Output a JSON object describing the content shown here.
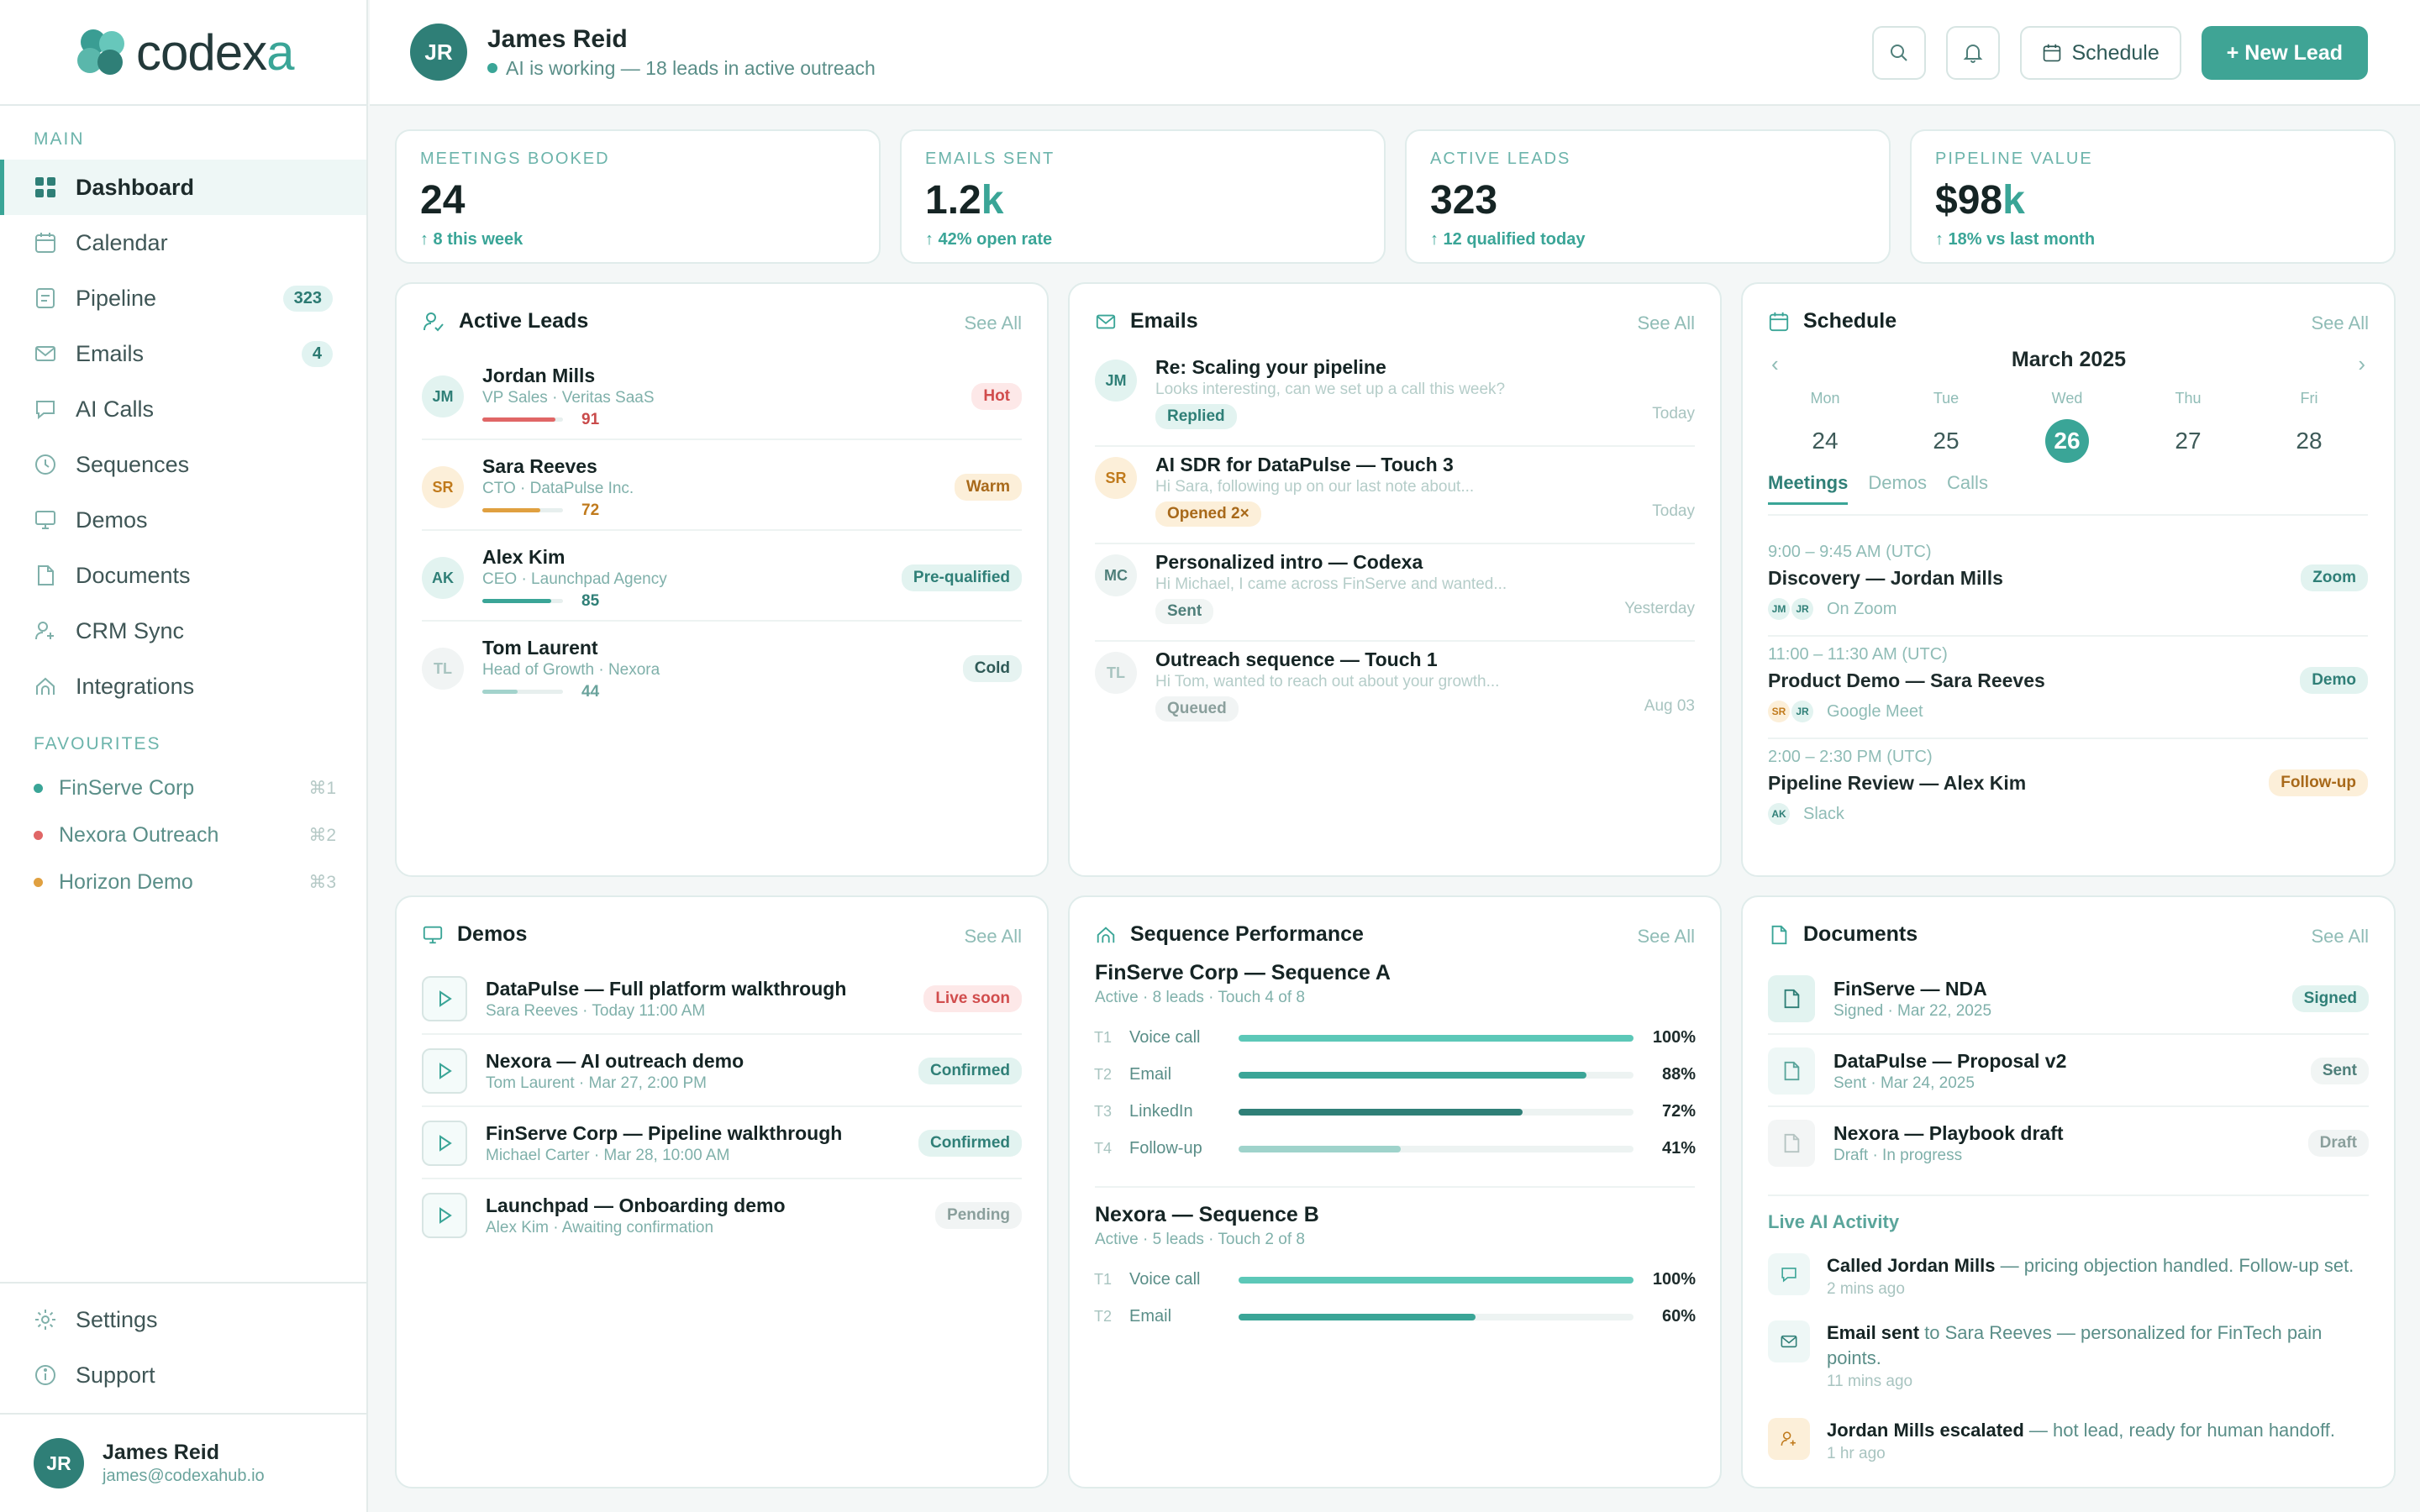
{
  "brand": {
    "name_main": "codex",
    "name_x": "a"
  },
  "sidebar": {
    "section_main": "MAIN",
    "items": [
      {
        "label": "Dashboard",
        "icon": "grid-icon",
        "count": ""
      },
      {
        "label": "Calendar",
        "icon": "calendar-icon",
        "count": ""
      },
      {
        "label": "Pipeline",
        "icon": "pipeline-icon",
        "count": "323"
      },
      {
        "label": "Emails",
        "icon": "mail-icon",
        "count": "4"
      },
      {
        "label": "AI Calls",
        "icon": "chat-icon",
        "count": ""
      },
      {
        "label": "Sequences",
        "icon": "clock-icon",
        "count": ""
      },
      {
        "label": "Demos",
        "icon": "monitor-icon",
        "count": ""
      },
      {
        "label": "Documents",
        "icon": "document-icon",
        "count": ""
      },
      {
        "label": "CRM Sync",
        "icon": "user-sync-icon",
        "count": ""
      },
      {
        "label": "Integrations",
        "icon": "integrations-icon",
        "count": ""
      }
    ],
    "section_favourites": "FAVOURITES",
    "favourites": [
      {
        "label": "FinServe Corp",
        "key": "⌘1",
        "color": "#3aa597"
      },
      {
        "label": "Nexora Outreach",
        "key": "⌘2",
        "color": "#e06666"
      },
      {
        "label": "Horizon Demo",
        "key": "⌘3",
        "color": "#e0a040"
      }
    ],
    "settings": "Settings",
    "support": "Support",
    "user": {
      "initials": "JR",
      "name": "James Reid",
      "email": "james@codexahub.io"
    }
  },
  "topbar": {
    "initials": "JR",
    "name": "James Reid",
    "status": "AI is working — 18 leads in active outreach",
    "schedule_label": "Schedule",
    "new_lead_label": "+ New Lead"
  },
  "stats": [
    {
      "label": "MEETINGS BOOKED",
      "value": "24",
      "suffix": "",
      "sub": "↑ 8 this week"
    },
    {
      "label": "EMAILS SENT",
      "value": "1.2",
      "suffix": "k",
      "sub": "↑ 42% open rate"
    },
    {
      "label": "ACTIVE LEADS",
      "value": "323",
      "suffix": "",
      "sub": "↑ 12 qualified today"
    },
    {
      "label": "PIPELINE VALUE",
      "value": "$98",
      "suffix": "k",
      "sub": "↑ 18% vs last month"
    }
  ],
  "see_all": "See All",
  "leads": {
    "title": "Active Leads",
    "items": [
      {
        "initials": "JM",
        "name": "Jordan Mills",
        "sub": "VP Sales · Veritas SaaS",
        "score": "91",
        "score_value": 0.91,
        "tag": "Hot"
      },
      {
        "initials": "SR",
        "name": "Sara Reeves",
        "sub": "CTO · DataPulse Inc.",
        "score": "72",
        "score_value": 0.72,
        "tag": "Warm"
      },
      {
        "initials": "AK",
        "name": "Alex Kim",
        "sub": "CEO · Launchpad Agency",
        "score": "85",
        "score_value": 0.85,
        "tag": "Pre-qualified"
      },
      {
        "initials": "TL",
        "name": "Tom Laurent",
        "sub": "Head of Growth · Nexora",
        "score": "44",
        "score_value": 0.44,
        "tag": "Cold"
      }
    ]
  },
  "emails": {
    "title": "Emails",
    "items": [
      {
        "initials": "JM",
        "subject": "Re: Scaling your pipeline",
        "preview": "Looks interesting, can we set up a call this week?",
        "status": "Replied",
        "when": "Today"
      },
      {
        "initials": "SR",
        "subject": "AI SDR for DataPulse — Touch 3",
        "preview": "Hi Sara, following up on our last note about...",
        "status": "Opened 2×",
        "when": "Today"
      },
      {
        "initials": "MC",
        "subject": "Personalized intro — Codexa",
        "preview": "Hi Michael, I came across FinServe and wanted...",
        "status": "Sent",
        "when": "Yesterday"
      },
      {
        "initials": "TL",
        "subject": "Outreach sequence — Touch 1",
        "preview": "Hi Tom, wanted to reach out about your growth...",
        "status": "Queued",
        "when": "Aug 03"
      }
    ]
  },
  "schedule": {
    "title": "Schedule",
    "month": "March 2025",
    "days": [
      {
        "name": "Mon",
        "num": "24"
      },
      {
        "name": "Tue",
        "num": "25"
      },
      {
        "name": "Wed",
        "num": "26"
      },
      {
        "name": "Thu",
        "num": "27"
      },
      {
        "name": "Fri",
        "num": "28"
      }
    ],
    "tabs": [
      "Meetings",
      "Demos",
      "Calls"
    ],
    "meetings": [
      {
        "time": "9:00 – 9:45 AM (UTC)",
        "title": "Discovery — Jordan Mills",
        "avatars": [
          "JM",
          "JR"
        ],
        "where": "On Zoom",
        "tag": "Zoom"
      },
      {
        "time": "11:00 – 11:30 AM (UTC)",
        "title": "Product Demo — Sara Reeves",
        "avatars": [
          "SR",
          "JR"
        ],
        "where": "Google Meet",
        "tag": "Demo"
      },
      {
        "time": "2:00 – 2:30 PM (UTC)",
        "title": "Pipeline Review — Alex Kim",
        "avatars": [
          "AK"
        ],
        "where": "Slack",
        "tag": "Follow-up"
      }
    ]
  },
  "demos": {
    "title": "Demos",
    "items": [
      {
        "title": "DataPulse — Full platform walkthrough",
        "sub": "Sara Reeves · Today 11:00 AM",
        "tag": "Live soon"
      },
      {
        "title": "Nexora — AI outreach demo",
        "sub": "Tom Laurent · Mar 27, 2:00 PM",
        "tag": "Confirmed"
      },
      {
        "title": "FinServe Corp — Pipeline walkthrough",
        "sub": "Michael Carter · Mar 28, 10:00 AM",
        "tag": "Confirmed"
      },
      {
        "title": "Launchpad — Onboarding demo",
        "sub": "Alex Kim · Awaiting confirmation",
        "tag": "Pending"
      }
    ]
  },
  "sequences": {
    "title": "Sequence Performance",
    "groups": [
      {
        "name": "FinServe Corp — Sequence A",
        "sub": "Active · 8 leads · Touch 4 of 8",
        "steps": [
          {
            "t": "T1",
            "name": "Voice call",
            "pct": "100%",
            "value": 1.0
          },
          {
            "t": "T2",
            "name": "Email",
            "pct": "88%",
            "value": 0.88
          },
          {
            "t": "T3",
            "name": "LinkedIn",
            "pct": "72%",
            "value": 0.72
          },
          {
            "t": "T4",
            "name": "Follow-up",
            "pct": "41%",
            "value": 0.41
          }
        ]
      },
      {
        "name": "Nexora — Sequence B",
        "sub": "Active · 5 leads · Touch 2 of 8",
        "steps": [
          {
            "t": "T1",
            "name": "Voice call",
            "pct": "100%",
            "value": 1.0
          },
          {
            "t": "T2",
            "name": "Email",
            "pct": "60%",
            "value": 0.6
          }
        ]
      }
    ]
  },
  "documents": {
    "title": "Documents",
    "items": [
      {
        "title": "FinServe — NDA",
        "sub": "Signed · Mar 22, 2025",
        "tag": "Signed"
      },
      {
        "title": "DataPulse — Proposal v2",
        "sub": "Sent · Mar 24, 2025",
        "tag": "Sent"
      },
      {
        "title": "Nexora — Playbook draft",
        "sub": "Draft · In progress",
        "tag": "Draft"
      }
    ],
    "activity_title": "Live AI Activity",
    "activity": [
      {
        "bold": "Called Jordan Mills",
        "rest": " — pricing objection handled. Follow-up set.",
        "time": "2 mins ago"
      },
      {
        "bold": "Email sent",
        "rest": " to Sara Reeves — personalized for FinTech pain points.",
        "time": "11 mins ago"
      },
      {
        "bold": "Jordan Mills escalated",
        "rest": " — hot lead, ready for human handoff.",
        "time": "1 hr ago"
      }
    ]
  }
}
